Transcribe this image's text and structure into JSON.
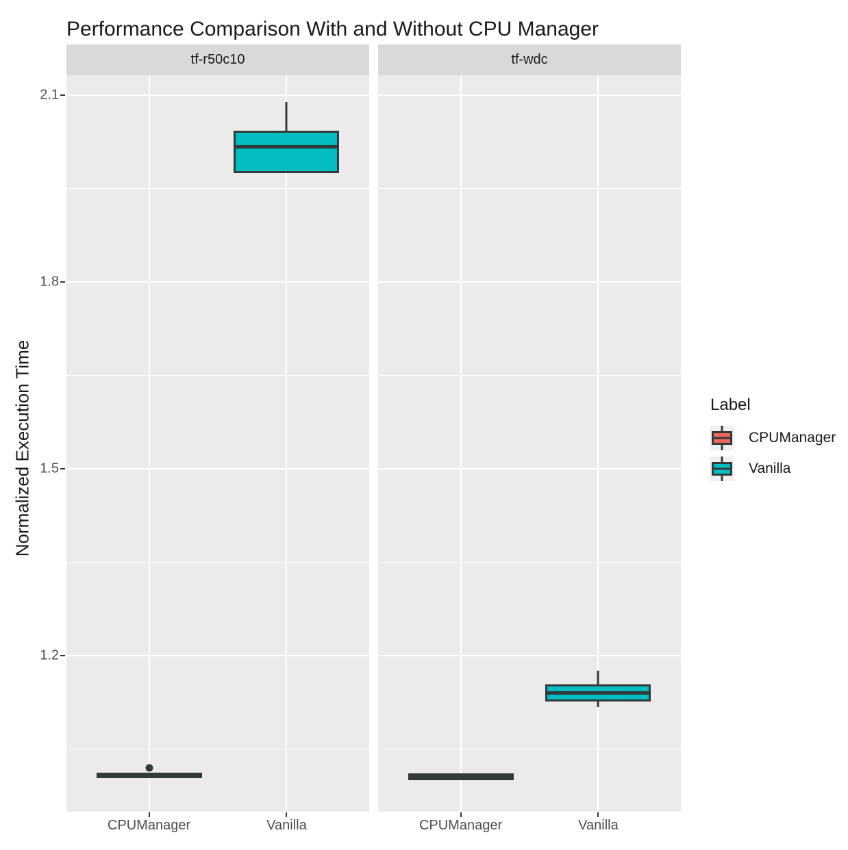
{
  "title": "Performance Comparison With and Without CPU Manager",
  "y_axis": {
    "label": "Normalized Execution Time"
  },
  "legend": {
    "title": "Label",
    "entries": [
      {
        "label": "CPUManager",
        "color": "#F2685C"
      },
      {
        "label": "Vanilla",
        "color": "#00BDC2"
      }
    ]
  },
  "colors": {
    "panel_bg": "#EBEBEB",
    "strip_bg": "#D9D9D9",
    "grid": "#FFFFFF",
    "box_stroke": "#333A3A",
    "tick_text": "#4D4D4D",
    "tick_mark": "#333333",
    "salmon": "#F2685C",
    "teal": "#00BDC2"
  },
  "chart_data": {
    "type": "boxplot",
    "title": "Performance Comparison With and Without CPU Manager",
    "ylabel": "Normalized Execution Time",
    "xlabel": "",
    "ylim": [
      0.949,
      2.132
    ],
    "y_ticks": [
      2.1,
      1.8,
      1.5,
      1.2
    ],
    "y_minor_ticks": [
      1.95,
      1.65,
      1.35,
      1.05
    ],
    "x_categories": [
      "CPUManager",
      "Vanilla"
    ],
    "grid": true,
    "legend_position": "right",
    "facets": [
      {
        "name": "tf-r50c10",
        "boxes": [
          {
            "category": "CPUManager",
            "fill": "#F2685C",
            "whisker_low": 1.003,
            "q1": 1.003,
            "median": 1.008,
            "q3": 1.012,
            "whisker_high": 1.012,
            "outliers": [
              1.019
            ]
          },
          {
            "category": "Vanilla",
            "fill": "#00BDC2",
            "whisker_low": 1.975,
            "q1": 1.975,
            "median": 2.017,
            "q3": 2.043,
            "whisker_high": 2.089,
            "outliers": []
          }
        ]
      },
      {
        "name": "tf-wdc",
        "boxes": [
          {
            "category": "CPUManager",
            "fill": "#F2685C",
            "whisker_low": 1.0,
            "q1": 1.0,
            "median": 1.006,
            "q3": 1.011,
            "whisker_high": 1.011,
            "outliers": []
          },
          {
            "category": "Vanilla",
            "fill": "#00BDC2",
            "whisker_low": 1.117,
            "q1": 1.126,
            "median": 1.14,
            "q3": 1.153,
            "whisker_high": 1.175,
            "outliers": []
          }
        ]
      }
    ]
  }
}
